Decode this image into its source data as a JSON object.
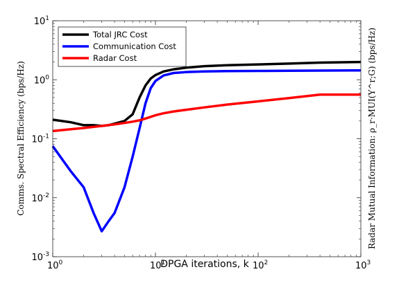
{
  "chart_data": {
    "type": "line",
    "xscale": "log",
    "yscale": "log",
    "xlim": [
      1,
      1000
    ],
    "ylim": [
      0.001,
      10
    ],
    "xlabel": "DPGA iterations, k",
    "ylabel_left": "Comms. Spectral Efficiency (bps/Hz)",
    "ylabel_right": "Radar Mutual Information: ρ_r·MUI(Y^r;G) (bps/Hz)",
    "x_ticks": [
      {
        "value": 1,
        "base": "10",
        "exp": "0"
      },
      {
        "value": 10,
        "base": "10",
        "exp": "1"
      },
      {
        "value": 100,
        "base": "10",
        "exp": "2"
      },
      {
        "value": 1000,
        "base": "10",
        "exp": "3"
      }
    ],
    "y_ticks": [
      {
        "value": 0.001,
        "base": "10",
        "exp": "-3"
      },
      {
        "value": 0.01,
        "base": "10",
        "exp": "-2"
      },
      {
        "value": 0.1,
        "base": "10",
        "exp": "-1"
      },
      {
        "value": 1,
        "base": "10",
        "exp": "0"
      },
      {
        "value": 10,
        "base": "10",
        "exp": "1"
      }
    ],
    "grid": false,
    "legend_position": "top-left",
    "series": [
      {
        "name": "Total JRC Cost",
        "color": "#000000",
        "x": [
          1,
          1.5,
          2,
          2.5,
          3,
          3.5,
          4,
          5,
          6,
          7,
          8,
          9,
          10,
          12,
          15,
          20,
          30,
          50,
          100,
          200,
          400,
          1000
        ],
        "y": [
          0.21,
          0.19,
          0.17,
          0.17,
          0.165,
          0.17,
          0.18,
          0.2,
          0.26,
          0.5,
          0.8,
          1.05,
          1.2,
          1.38,
          1.5,
          1.6,
          1.7,
          1.76,
          1.82,
          1.88,
          1.95,
          2.0
        ]
      },
      {
        "name": "Communication Cost",
        "color": "#0000ff",
        "x": [
          1,
          1.5,
          2,
          2.5,
          3,
          3.5,
          4,
          5,
          6,
          7,
          8,
          9,
          10,
          12,
          15,
          20,
          30,
          50,
          100,
          200,
          400,
          1000
        ],
        "y": [
          0.075,
          0.028,
          0.015,
          0.0055,
          0.0027,
          0.004,
          0.0055,
          0.015,
          0.05,
          0.15,
          0.4,
          0.72,
          0.95,
          1.18,
          1.3,
          1.35,
          1.38,
          1.4,
          1.41,
          1.42,
          1.43,
          1.44
        ]
      },
      {
        "name": "Radar Cost",
        "color": "#ff0000",
        "x": [
          1,
          1.5,
          2,
          3,
          4,
          5,
          6,
          7,
          8,
          10,
          12,
          15,
          20,
          30,
          50,
          100,
          200,
          400,
          1000
        ],
        "y": [
          0.135,
          0.145,
          0.152,
          0.165,
          0.175,
          0.185,
          0.195,
          0.205,
          0.22,
          0.25,
          0.27,
          0.29,
          0.31,
          0.34,
          0.38,
          0.43,
          0.49,
          0.56,
          0.56
        ]
      }
    ]
  }
}
